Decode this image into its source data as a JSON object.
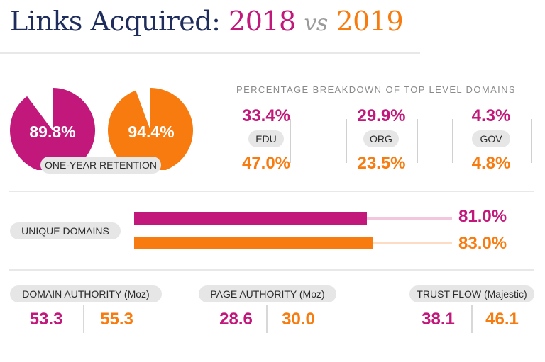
{
  "title": {
    "prefix": "Links Acquired:",
    "year_a": "2018",
    "vs": "vs",
    "year_b": "2019"
  },
  "colors": {
    "y2018": "#c2177b",
    "y2019": "#f77b0e",
    "y2018_light": "#f2c7dd",
    "y2019_light": "#fcdcc2",
    "navy": "#1f2d5c"
  },
  "retention": {
    "label": "ONE-YEAR RETENTION",
    "y2018": "89.8%",
    "y2019": "94.4%"
  },
  "tld": {
    "title": "PERCENTAGE BREAKDOWN OF TOP LEVEL DOMAINS",
    "items": [
      {
        "label": "EDU",
        "y2018": "33.4%",
        "y2019": "47.0%"
      },
      {
        "label": "ORG",
        "y2018": "29.9%",
        "y2019": "23.5%"
      },
      {
        "label": "GOV",
        "y2018": "4.3%",
        "y2019": "4.8%"
      }
    ]
  },
  "unique_domains": {
    "label": "UNIQUE DOMAINS",
    "y2018": "81.0%",
    "y2019": "83.0%"
  },
  "metrics": [
    {
      "label": "DOMAIN AUTHORITY (Moz)",
      "y2018": "53.3",
      "y2019": "55.3"
    },
    {
      "label": "PAGE AUTHORITY (Moz)",
      "y2018": "28.6",
      "y2019": "30.0"
    },
    {
      "label": "TRUST FLOW (Majestic)",
      "y2018": "38.1",
      "y2019": "46.1"
    }
  ],
  "chart_data": [
    {
      "type": "pie",
      "title": "ONE-YEAR RETENTION",
      "series": [
        {
          "name": "2018",
          "values": [
            89.8,
            10.2
          ]
        },
        {
          "name": "2019",
          "values": [
            94.4,
            5.6
          ]
        }
      ]
    },
    {
      "type": "table",
      "title": "PERCENTAGE BREAKDOWN OF TOP LEVEL DOMAINS",
      "categories": [
        "EDU",
        "ORG",
        "GOV"
      ],
      "series": [
        {
          "name": "2018",
          "values": [
            33.4,
            29.9,
            4.3
          ]
        },
        {
          "name": "2019",
          "values": [
            47.0,
            23.5,
            4.8
          ]
        }
      ]
    },
    {
      "type": "bar",
      "title": "UNIQUE DOMAINS",
      "categories": [
        "UNIQUE DOMAINS"
      ],
      "series": [
        {
          "name": "2018",
          "values": [
            81.0
          ]
        },
        {
          "name": "2019",
          "values": [
            83.0
          ]
        }
      ],
      "ylim": [
        0,
        100
      ]
    },
    {
      "type": "table",
      "categories": [
        "DOMAIN AUTHORITY (Moz)",
        "PAGE AUTHORITY (Moz)",
        "TRUST FLOW (Majestic)"
      ],
      "series": [
        {
          "name": "2018",
          "values": [
            53.3,
            28.6,
            38.1
          ]
        },
        {
          "name": "2019",
          "values": [
            55.3,
            30.0,
            46.1
          ]
        }
      ]
    }
  ]
}
